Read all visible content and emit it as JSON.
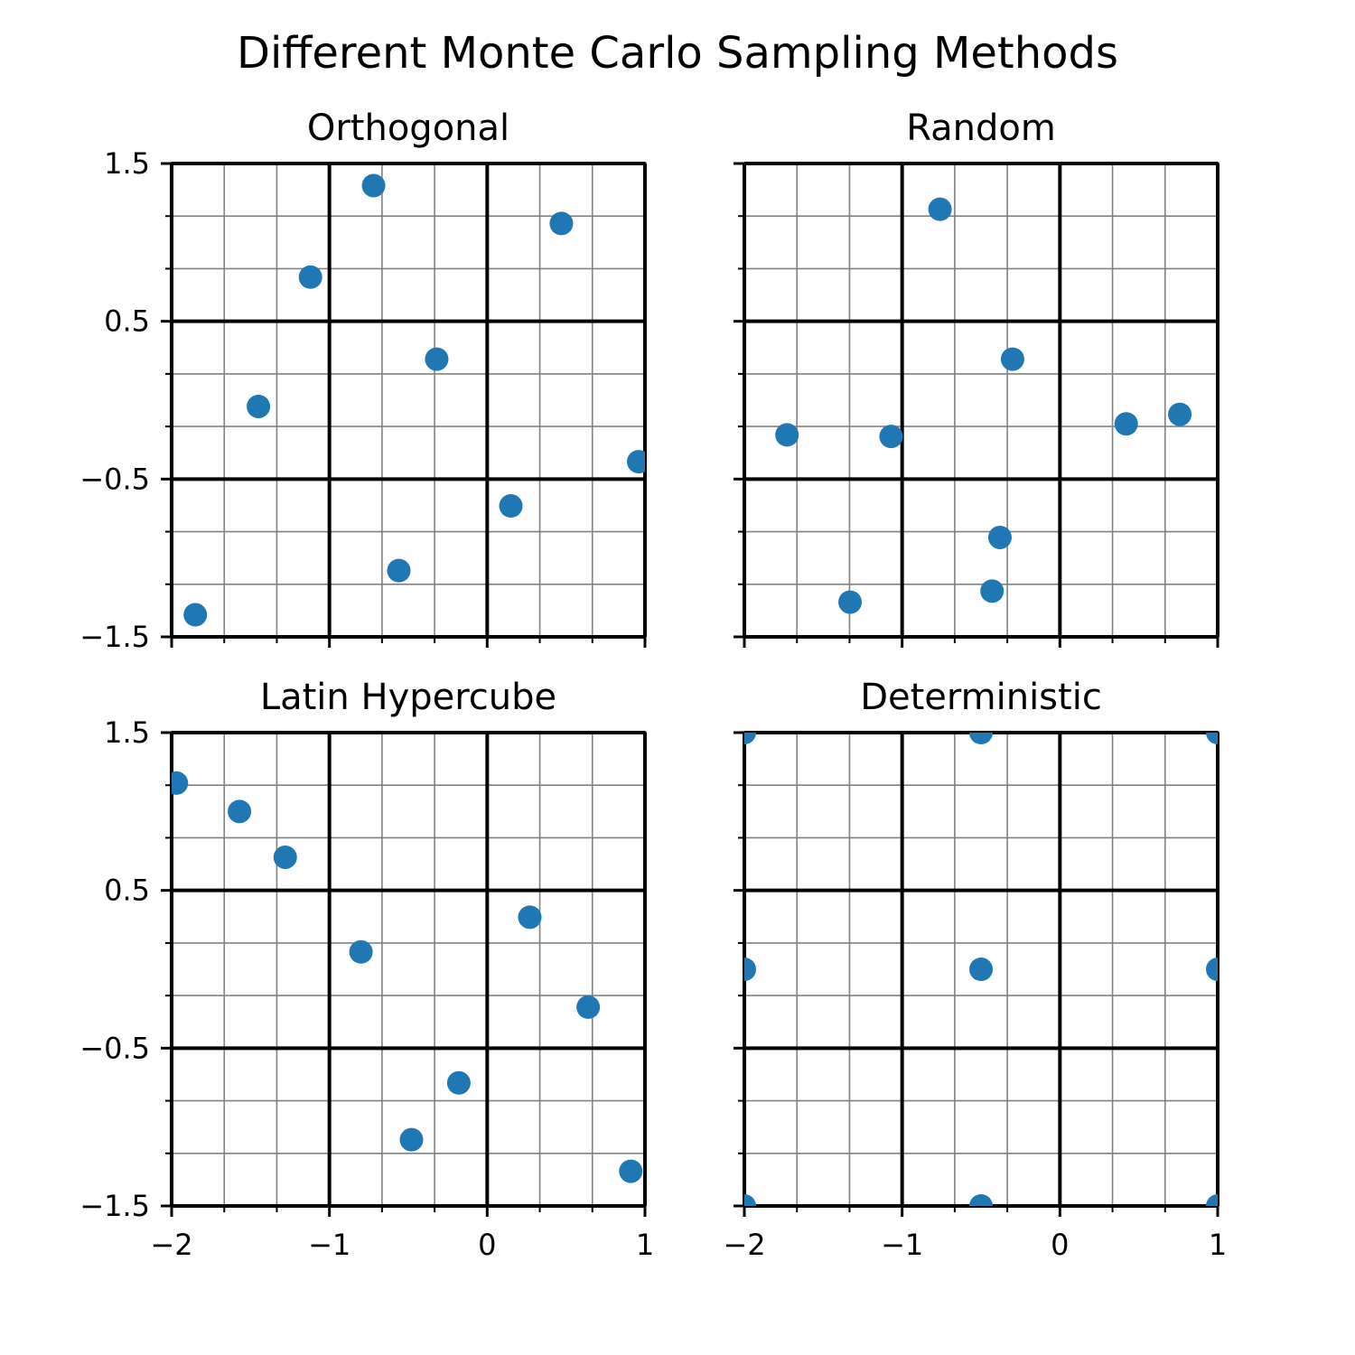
{
  "figure": {
    "title": "Different Monte Carlo Sampling Methods"
  },
  "colors": {
    "marker": "#1f77b4",
    "major_grid": "#000000",
    "minor_grid": "#808080",
    "spine": "#000000"
  },
  "chart_data": [
    {
      "type": "scatter",
      "title": "Orthogonal",
      "xlim": [
        -2,
        1
      ],
      "ylim": [
        -1.5,
        1.5
      ],
      "xticks": [
        -2,
        -1,
        0,
        1
      ],
      "yticks": [
        -1.5,
        -0.5,
        0.5,
        1.5
      ],
      "ytick_labels": [
        "−1.5",
        "−0.5",
        "0.5",
        "1.5"
      ],
      "xtick_labels_shown": false,
      "ytick_labels_shown": true,
      "grid": true,
      "x": [
        -1.85,
        -1.45,
        -1.12,
        -0.72,
        -0.56,
        -0.32,
        0.15,
        0.47,
        0.96
      ],
      "y": [
        -1.36,
        -0.04,
        0.78,
        1.36,
        -1.08,
        0.26,
        -0.67,
        1.12,
        -0.39
      ]
    },
    {
      "type": "scatter",
      "title": "Random",
      "xlim": [
        -2,
        1
      ],
      "ylim": [
        -1.5,
        1.5
      ],
      "xticks": [
        -2,
        -1,
        0,
        1
      ],
      "yticks": [
        -1.5,
        -0.5,
        0.5,
        1.5
      ],
      "xtick_labels_shown": false,
      "ytick_labels_shown": false,
      "grid": true,
      "x": [
        -1.73,
        -1.33,
        -1.07,
        -0.76,
        -0.43,
        -0.38,
        -0.3,
        0.42,
        0.76
      ],
      "y": [
        -0.22,
        -1.28,
        -0.23,
        1.21,
        -1.21,
        -0.87,
        0.26,
        -0.15,
        -0.09
      ]
    },
    {
      "type": "scatter",
      "title": "Latin Hypercube",
      "xlim": [
        -2,
        1
      ],
      "ylim": [
        -1.5,
        1.5
      ],
      "xticks": [
        -2,
        -1,
        0,
        1
      ],
      "xtick_labels": [
        "−2",
        "−1",
        "0",
        "1"
      ],
      "yticks": [
        -1.5,
        -0.5,
        0.5,
        1.5
      ],
      "ytick_labels": [
        "−1.5",
        "−0.5",
        "0.5",
        "1.5"
      ],
      "xtick_labels_shown": true,
      "ytick_labels_shown": true,
      "grid": true,
      "x": [
        -1.97,
        -1.57,
        -1.28,
        -0.8,
        -0.48,
        -0.18,
        0.27,
        0.64,
        0.91
      ],
      "y": [
        1.18,
        1.0,
        0.71,
        0.11,
        -1.08,
        -0.72,
        0.33,
        -0.24,
        -1.28
      ]
    },
    {
      "type": "scatter",
      "title": "Deterministic",
      "xlim": [
        -2,
        1
      ],
      "ylim": [
        -1.5,
        1.5
      ],
      "xticks": [
        -2,
        -1,
        0,
        1
      ],
      "xtick_labels": [
        "−2",
        "−1",
        "0",
        "1"
      ],
      "yticks": [
        -1.5,
        -0.5,
        0.5,
        1.5
      ],
      "xtick_labels_shown": true,
      "ytick_labels_shown": false,
      "grid": true,
      "x": [
        -2,
        -2,
        -2,
        -0.5,
        -0.5,
        -0.5,
        1,
        1,
        1
      ],
      "y": [
        1.5,
        0,
        -1.5,
        1.5,
        0,
        -1.5,
        1.5,
        0,
        -1.5
      ]
    }
  ]
}
